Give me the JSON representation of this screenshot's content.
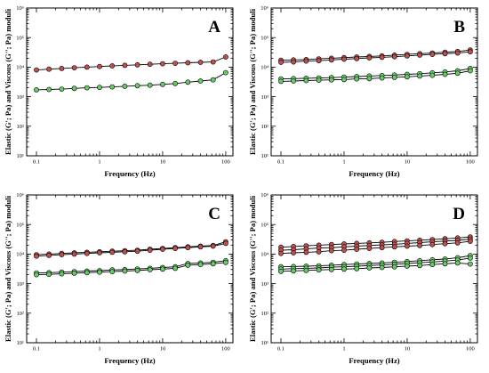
{
  "figure": {
    "xlabel": "Frequency (Hz)",
    "ylabel": "Elastic (G'; Pa) and Viscous (G''; Pa) moduli"
  },
  "chart_data": [
    {
      "type": "line",
      "panel_label": "A",
      "x_scale": "log",
      "y_scale": "log",
      "xlim": [
        0.07,
        130
      ],
      "ylim": [
        10,
        1000000
      ],
      "x_ticks": [
        "0.1",
        "1",
        "10",
        "100"
      ],
      "y_ticks": [
        "10¹",
        "10²",
        "10³",
        "10⁴",
        "10⁵",
        "10⁶"
      ],
      "x": [
        0.1,
        0.158,
        0.251,
        0.398,
        0.631,
        1,
        1.585,
        2.512,
        3.981,
        6.31,
        10,
        15.85,
        25.12,
        39.81,
        63.1,
        100
      ],
      "series": [
        {
          "name": "",
          "color": "#c0504d",
          "values": [
            8000,
            8500,
            9000,
            9500,
            10000,
            10500,
            11000,
            11500,
            12000,
            12500,
            13000,
            13500,
            14000,
            14500,
            15000,
            22000
          ]
        },
        {
          "name": "",
          "color": "#66cc66",
          "values": [
            1700,
            1750,
            1800,
            1900,
            2000,
            2050,
            2150,
            2250,
            2350,
            2450,
            2600,
            2800,
            3100,
            3400,
            3700,
            6500
          ]
        }
      ]
    },
    {
      "type": "line",
      "panel_label": "B",
      "x_scale": "log",
      "y_scale": "log",
      "xlim": [
        0.07,
        130
      ],
      "ylim": [
        10,
        1000000
      ],
      "x_ticks": [
        "0.1",
        "1",
        "10",
        "100"
      ],
      "y_ticks": [
        "10¹",
        "10²",
        "10³",
        "10⁴",
        "10⁵",
        "10⁶"
      ],
      "x": [
        0.1,
        0.158,
        0.251,
        0.398,
        0.631,
        1,
        1.585,
        2.512,
        3.981,
        6.31,
        10,
        15.85,
        25.12,
        39.81,
        63.1,
        100
      ],
      "series": [
        {
          "name": "",
          "color": "#c0504d",
          "values": [
            17000,
            17500,
            18000,
            19000,
            20000,
            21000,
            22000,
            23000,
            24000,
            25500,
            27000,
            28500,
            30000,
            32000,
            34000,
            38000
          ]
        },
        {
          "name": "",
          "color": "#c0504d",
          "values": [
            14500,
            15000,
            16000,
            16500,
            17500,
            18500,
            19500,
            20500,
            21500,
            22500,
            24000,
            25500,
            27000,
            28500,
            30000,
            33000
          ]
        },
        {
          "name": "",
          "color": "#66cc66",
          "values": [
            4000,
            4100,
            4200,
            4300,
            4400,
            4600,
            4800,
            5000,
            5200,
            5400,
            5700,
            6000,
            6400,
            6900,
            7500,
            9000
          ]
        },
        {
          "name": "",
          "color": "#66cc66",
          "values": [
            3300,
            3400,
            3500,
            3600,
            3700,
            3800,
            4000,
            4100,
            4300,
            4500,
            4700,
            5000,
            5300,
            5700,
            6200,
            7500
          ]
        }
      ]
    },
    {
      "type": "line",
      "panel_label": "C",
      "x_scale": "log",
      "y_scale": "log",
      "xlim": [
        0.07,
        130
      ],
      "ylim": [
        10,
        1000000
      ],
      "x_ticks": [
        "0.1",
        "1",
        "10",
        "100"
      ],
      "y_ticks": [
        "10¹",
        "10²",
        "10³",
        "10⁴",
        "10⁵",
        "10⁶"
      ],
      "x": [
        0.1,
        0.158,
        0.251,
        0.398,
        0.631,
        1,
        1.585,
        2.512,
        3.981,
        6.31,
        10,
        15.85,
        25.12,
        39.81,
        63.1,
        100
      ],
      "series": [
        {
          "name": "",
          "color": "#c0504d",
          "values": [
            9500,
            10000,
            10500,
            11000,
            11500,
            12000,
            12500,
            13000,
            13500,
            14500,
            15500,
            16500,
            17500,
            18500,
            19500,
            26000
          ]
        },
        {
          "name": "",
          "color": "#c0504d",
          "values": [
            8500,
            9000,
            9500,
            10000,
            10500,
            11000,
            11500,
            12000,
            12500,
            13500,
            14500,
            15500,
            16500,
            17500,
            18500,
            23000
          ]
        },
        {
          "name": "",
          "color": "#66cc66",
          "values": [
            2300,
            2350,
            2450,
            2550,
            2650,
            2750,
            2900,
            3000,
            3150,
            3300,
            3500,
            3700,
            4800,
            5000,
            5300,
            6000
          ]
        },
        {
          "name": "",
          "color": "#66cc66",
          "values": [
            2000,
            2050,
            2150,
            2250,
            2350,
            2450,
            2550,
            2650,
            2800,
            2950,
            3100,
            3300,
            4200,
            4400,
            4700,
            5200
          ]
        }
      ]
    },
    {
      "type": "line",
      "panel_label": "D",
      "x_scale": "log",
      "y_scale": "log",
      "xlim": [
        0.07,
        130
      ],
      "ylim": [
        10,
        1000000
      ],
      "x_ticks": [
        "0.1",
        "1",
        "10",
        "100"
      ],
      "y_ticks": [
        "10¹",
        "10²",
        "10³",
        "10⁴",
        "10⁵",
        "10⁶"
      ],
      "x": [
        0.1,
        0.158,
        0.251,
        0.398,
        0.631,
        1,
        1.585,
        2.512,
        3.981,
        6.31,
        10,
        15.85,
        25.12,
        39.81,
        63.1,
        100
      ],
      "series": [
        {
          "name": "",
          "color": "#c0504d",
          "values": [
            17000,
            18000,
            19000,
            20000,
            21000,
            22000,
            23000,
            24000,
            25000,
            26500,
            28000,
            29500,
            31000,
            33000,
            35000,
            38000
          ]
        },
        {
          "name": "",
          "color": "#c0504d",
          "values": [
            13500,
            14000,
            15000,
            16000,
            16500,
            17500,
            18500,
            19500,
            20500,
            21500,
            23000,
            24500,
            26000,
            27500,
            29000,
            32000
          ]
        },
        {
          "name": "",
          "color": "#c0504d",
          "values": [
            10500,
            11000,
            11500,
            12000,
            13000,
            13500,
            14500,
            15500,
            16500,
            17500,
            18500,
            19500,
            21000,
            22500,
            24000,
            27000
          ]
        },
        {
          "name": "",
          "color": "#66cc66",
          "values": [
            3700,
            3800,
            3900,
            4000,
            4200,
            4400,
            4600,
            4800,
            5000,
            5300,
            5600,
            6000,
            6400,
            6800,
            7500,
            8800
          ]
        },
        {
          "name": "",
          "color": "#66cc66",
          "values": [
            3100,
            3200,
            3300,
            3400,
            3600,
            3700,
            3900,
            4100,
            4300,
            4500,
            4800,
            5100,
            5400,
            5800,
            6300,
            7300
          ]
        },
        {
          "name": "",
          "color": "#66cc66",
          "values": [
            2600,
            2700,
            2800,
            2900,
            3000,
            3100,
            3200,
            3400,
            3500,
            3700,
            3900,
            4100,
            4400,
            4700,
            5000,
            4600
          ]
        }
      ]
    }
  ]
}
